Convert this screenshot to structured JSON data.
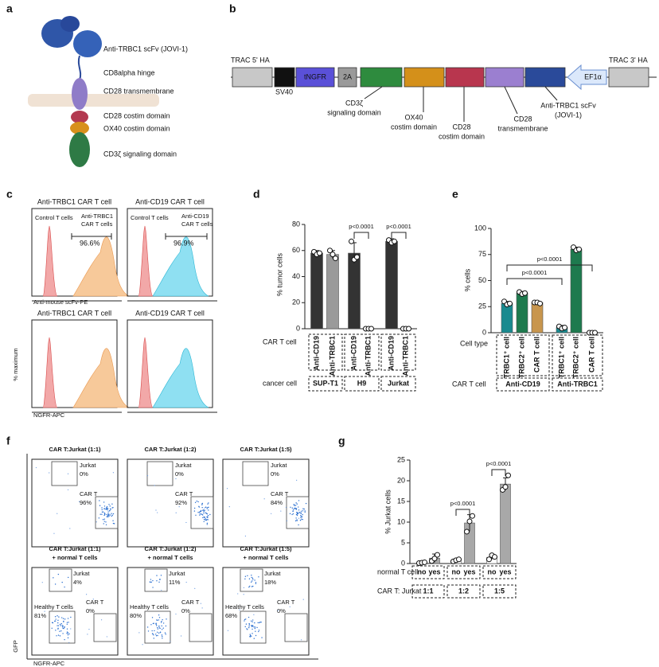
{
  "panel_a": {
    "label": "a",
    "labels": [
      "Anti-TRBC1 scFv (JOVI-1)",
      "CD8alpha hinge",
      "CD28 transmembrane",
      "CD28 costim domain",
      "OX40 costim domain",
      "CD3ζ signaling domain"
    ]
  },
  "panel_b": {
    "label": "b",
    "top_labels": [
      "TRAC 5' HA",
      "TRAC 3' HA"
    ],
    "sv40": "SV40",
    "boxes": [
      "tNGFR",
      "2A",
      "EF1α"
    ],
    "callouts": [
      [
        "CD3ζ",
        "signaling domain"
      ],
      [
        "OX40",
        "costim domain"
      ],
      [
        "CD28",
        "costim domain"
      ],
      [
        "CD28",
        "transmembrane"
      ],
      [
        "Anti-TRBC1 scFv",
        "(JOVI-1)"
      ]
    ]
  },
  "panel_c": {
    "label": "c",
    "titles": [
      "Anti-TRBC1 CAR T cell",
      "Anti-CD19 CAR T cell",
      "Anti-TRBC1 CAR T cell",
      "Anti-CD19 CAR T cell"
    ],
    "x_labels": [
      "Anti-mouse scFv-PE",
      "NGFR-APC"
    ],
    "y_label": "% maximum",
    "control": [
      "Control T cells",
      "Control T cells"
    ],
    "car": [
      [
        "Anti-TRBC1",
        "CAR T cells"
      ],
      [
        "Anti-CD19",
        "CAR T cells"
      ]
    ],
    "gates": [
      "96.6%",
      "96.9%"
    ]
  },
  "panel_f": {
    "label": "f",
    "x_label": "NGFR-APC",
    "y_label": "GFP",
    "titles": [
      [
        "CAR T:Jurkat (1:1)"
      ],
      [
        "CAR T:Jurkat (1:2)"
      ],
      [
        "CAR T:Jurkat (1:5)"
      ],
      [
        "CAR T:Jurkat (1:1)",
        "+ normal T cells"
      ],
      [
        "CAR T:Jurkat (1:2)",
        "+ normal T cells"
      ],
      [
        "CAR T:Jurkat (1:5)",
        "+ normal T cells"
      ]
    ],
    "gates": [
      [
        [
          "Jurkat",
          "0%"
        ],
        [
          "CAR T",
          "96%"
        ]
      ],
      [
        [
          "Jurkat",
          "0%"
        ],
        [
          "CAR T",
          "92%"
        ]
      ],
      [
        [
          "Jurkat",
          "0%"
        ],
        [
          "CAR T",
          "84%"
        ]
      ],
      [
        [
          "Jurkat",
          "4%"
        ],
        [
          "Healthy T cells",
          "81%"
        ],
        [
          "CAR T",
          "0%"
        ]
      ],
      [
        [
          "Jurkat",
          "11%"
        ],
        [
          "Healthy T cells",
          "80%"
        ],
        [
          "CAR T",
          "0%"
        ]
      ],
      [
        [
          "Jurkat",
          "18%"
        ],
        [
          "Healthy T cells",
          "68%"
        ],
        [
          "CAR T",
          "0%"
        ]
      ]
    ]
  },
  "chart_data": [
    {
      "type": "bar",
      "label": "d",
      "y_label": "% tumor cells",
      "ylim": [
        0,
        80
      ],
      "yticks": [
        0,
        20,
        40,
        60,
        80
      ],
      "categories": [
        "Anti-CD19",
        "Anti-TRBC1",
        "Anti-CD19",
        "Anti-TRBC1",
        "Anti-CD19",
        "Anti-TRBC1"
      ],
      "values": [
        58,
        57,
        58,
        0,
        67,
        0
      ],
      "errors": [
        2,
        3,
        8,
        0,
        2,
        0
      ],
      "points": [
        [
          59,
          57,
          58
        ],
        [
          60,
          57,
          54
        ],
        [
          67,
          53,
          55
        ],
        [
          0,
          0,
          0
        ],
        [
          68,
          66,
          67
        ],
        [
          0,
          0,
          0
        ]
      ],
      "colors": [
        "#333333",
        "#9a9a9a",
        "#333333",
        "#9a9a9a",
        "#333333",
        "#9a9a9a"
      ],
      "row_labels": [
        "CAR T cell",
        "cancer cell"
      ],
      "groups": [
        "SUP-T1",
        "H9",
        "Jurkat"
      ],
      "annotations": [
        "p<0.0001",
        "p<0.0001"
      ]
    },
    {
      "type": "bar",
      "label": "e",
      "y_label": "% cells",
      "ylim": [
        0,
        100
      ],
      "yticks": [
        0,
        25,
        50,
        75,
        100
      ],
      "categories": [
        "TRBC1⁺ cell",
        "TRBC2⁺ cell",
        "CAR T cell",
        "TRBC1⁺ cell",
        "TRBC2⁺ cell",
        "CAR T cell"
      ],
      "values": [
        28,
        38,
        29,
        5,
        80,
        0
      ],
      "errors": [
        2,
        1.5,
        1,
        2,
        2,
        0
      ],
      "points": [
        [
          30,
          27,
          28
        ],
        [
          39,
          37,
          38
        ],
        [
          29,
          29,
          28
        ],
        [
          6,
          4,
          5
        ],
        [
          82,
          79,
          80
        ],
        [
          0,
          0,
          0
        ]
      ],
      "colors": [
        "#1a8a8f",
        "#1e7a4e",
        "#c8964e",
        "#1a8a8f",
        "#1e7a4e",
        "#c8964e"
      ],
      "row_labels": [
        "Cell type",
        "CAR T cell"
      ],
      "groups": [
        "Anti-CD19",
        "Anti-TRBC1"
      ],
      "annotations": [
        "p<0.0001",
        "p<0.0001"
      ]
    },
    {
      "type": "bar",
      "label": "g",
      "y_label": "% Jurkat cells",
      "ylim": [
        0,
        25
      ],
      "yticks": [
        0,
        5,
        10,
        15,
        20,
        25
      ],
      "categories": [
        "no",
        "yes",
        "no",
        "yes",
        "no",
        "yes"
      ],
      "values": [
        0.2,
        1.3,
        0.8,
        9.8,
        1.5,
        19.2
      ],
      "errors": [
        0.2,
        1,
        0.3,
        2,
        0.5,
        1.5
      ],
      "points": [
        [
          0.1,
          0.2,
          0.3
        ],
        [
          0.6,
          1.2,
          2.1
        ],
        [
          0.5,
          0.8,
          1
        ],
        [
          7.7,
          10.2,
          11.5
        ],
        [
          1,
          2,
          1.6
        ],
        [
          17.8,
          18.5,
          21.3
        ]
      ],
      "colors": [
        "#ffffff",
        "#a8a8a8",
        "#ffffff",
        "#a8a8a8",
        "#ffffff",
        "#a8a8a8"
      ],
      "row_labels": [
        "normal T cell",
        "CAR T: Jurkat"
      ],
      "groups": [
        "1:1",
        "1:2",
        "1:5"
      ],
      "annotations": [
        "p<0.0001",
        "p<0.0001"
      ]
    }
  ]
}
